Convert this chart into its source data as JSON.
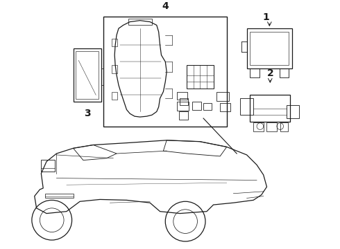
{
  "background_color": "#ffffff",
  "line_color": "#1a1a1a",
  "figure_width": 4.9,
  "figure_height": 3.6,
  "dpi": 100,
  "label_fontsize": 10,
  "label_fontweight": "bold"
}
